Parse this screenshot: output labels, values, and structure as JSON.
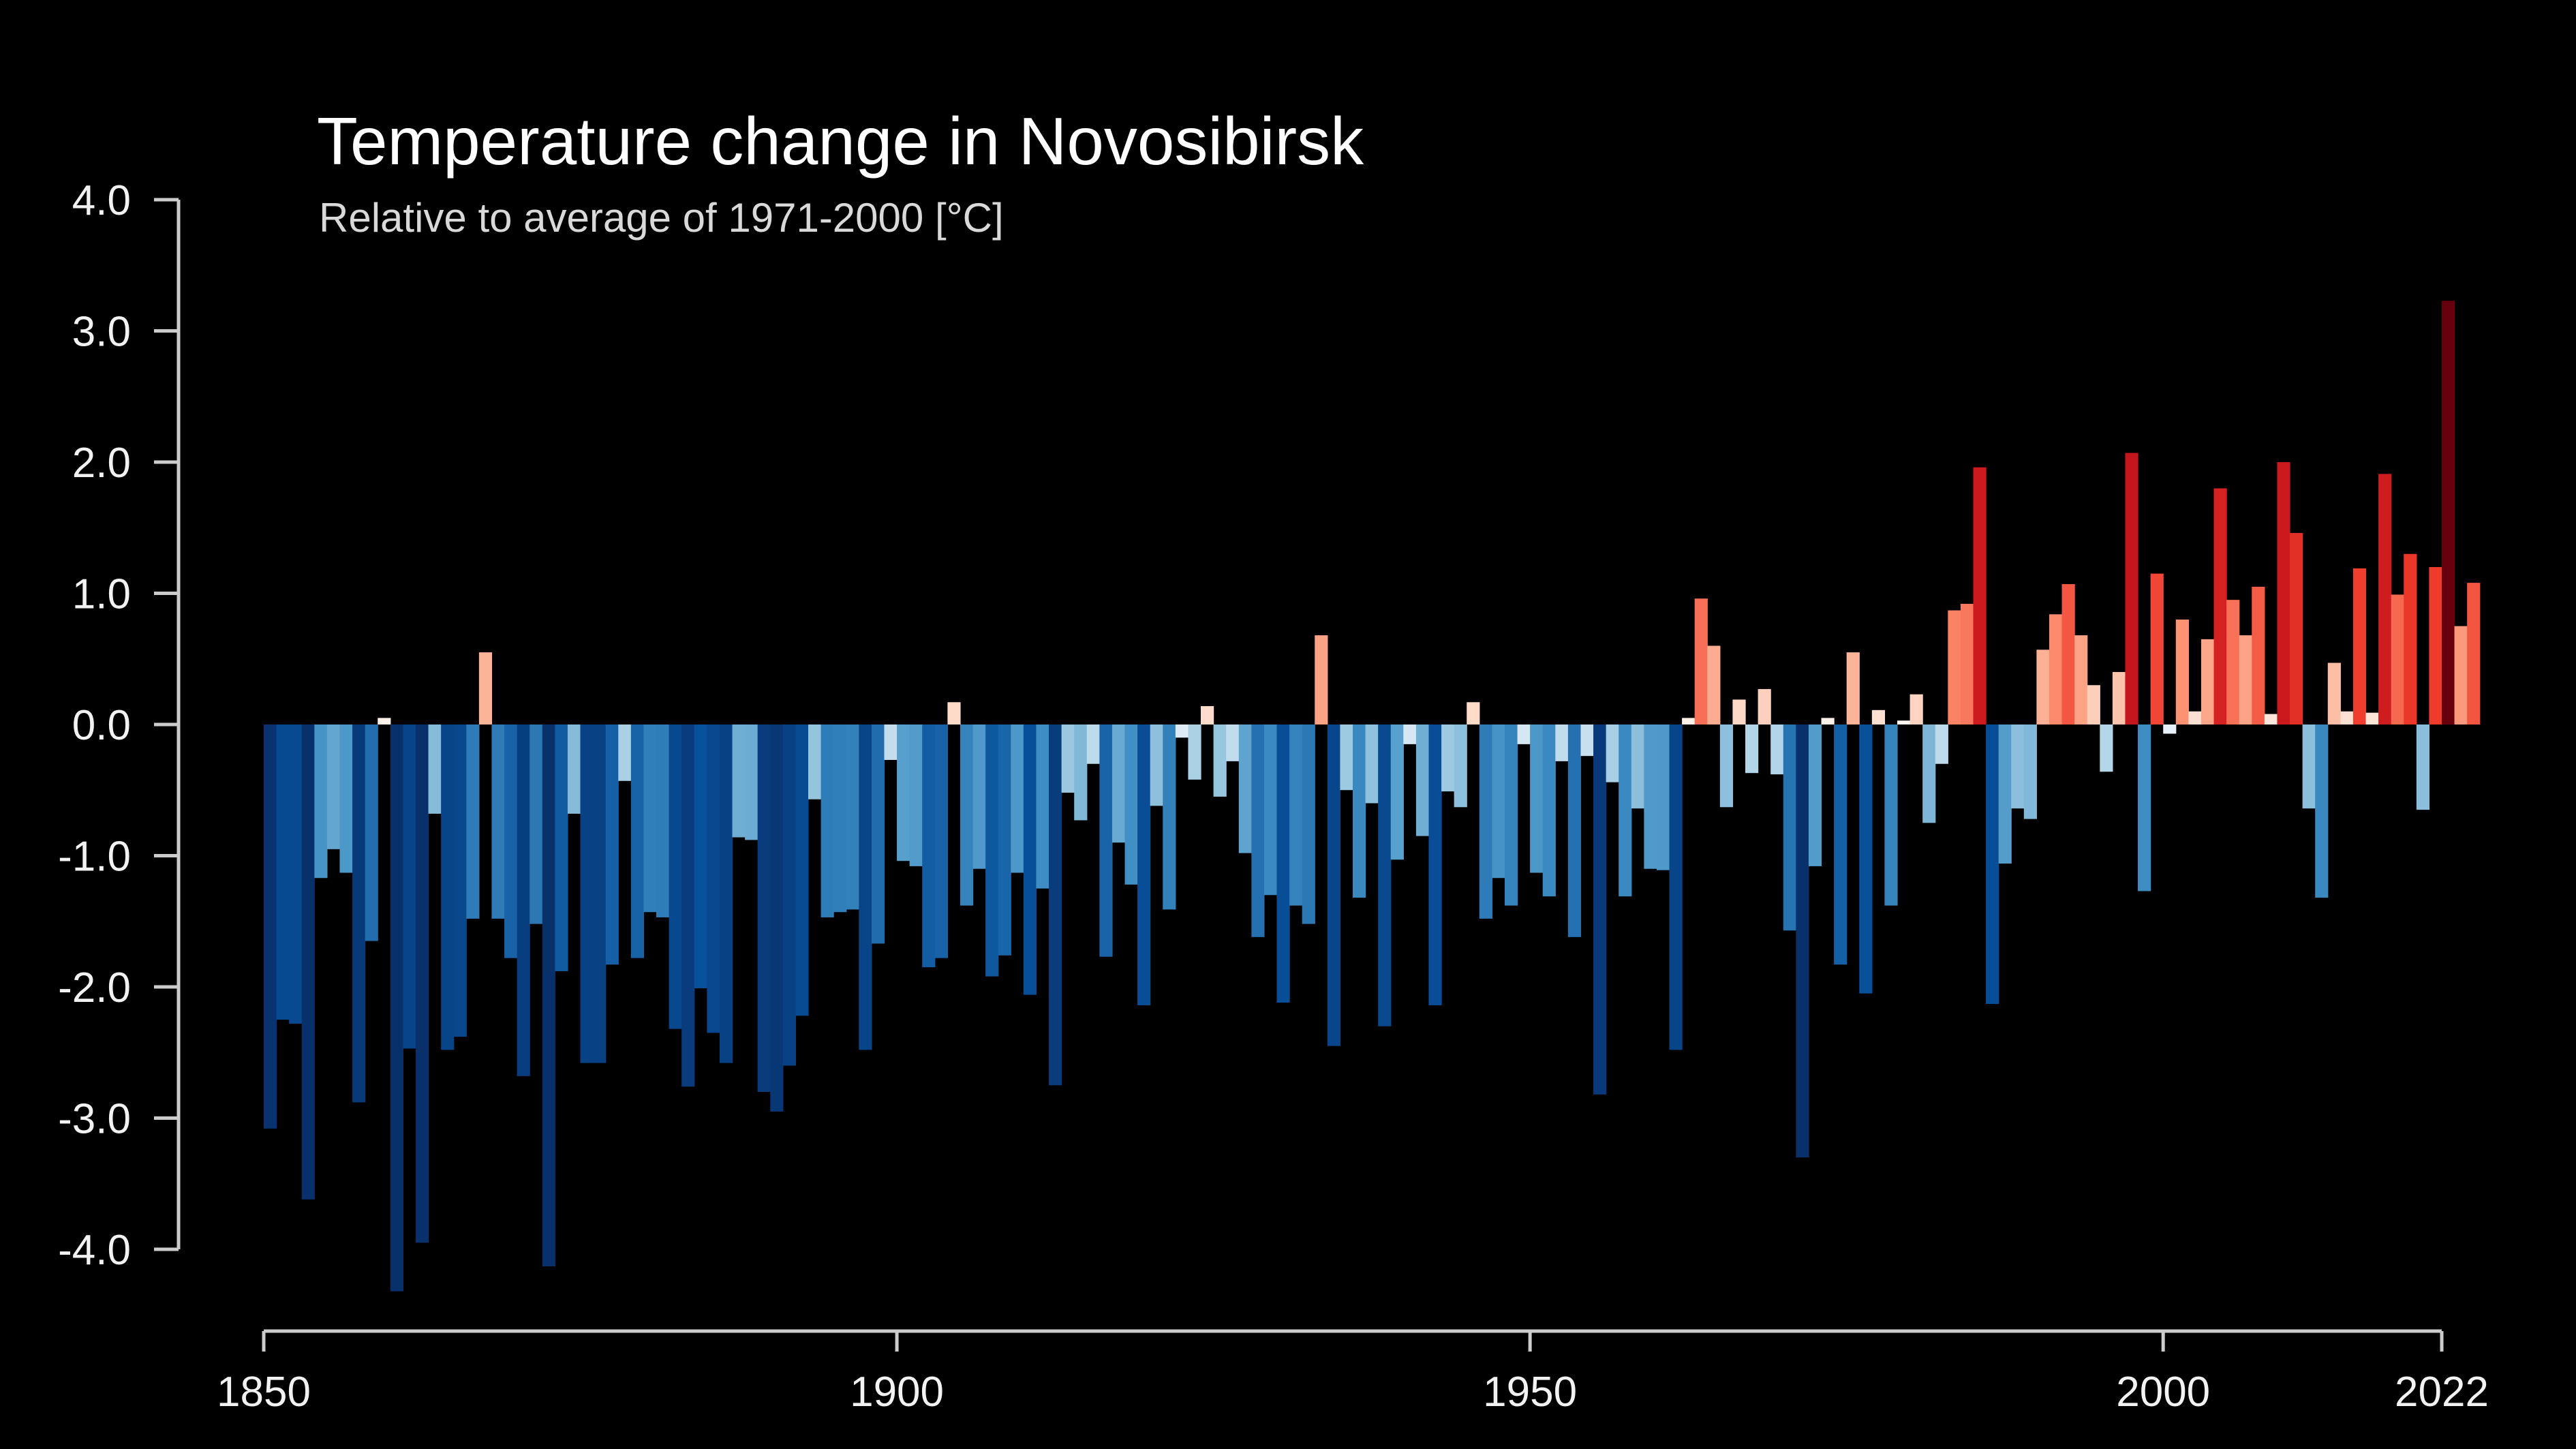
{
  "chart_data": {
    "type": "bar",
    "title": "Temperature change in Novosibirsk",
    "subtitle": "Relative to average of 1971-2000  [°C]",
    "xlabel": "",
    "ylabel": "",
    "ylim": [
      -4.0,
      4.0
    ],
    "xlim": [
      1850,
      2022
    ],
    "grid": false,
    "y_ticks": [
      "4.0",
      "3.0",
      "2.0",
      "1.0",
      "0.0",
      "-1.0",
      "-2.0",
      "-3.0",
      "-4.0"
    ],
    "x_ticks": [
      "1850",
      "1900",
      "1950",
      "2000",
      "2022"
    ],
    "x_start_year": 1850,
    "values": [
      -3.08,
      -2.25,
      -2.28,
      -3.62,
      -1.17,
      -0.95,
      -1.13,
      -2.88,
      -1.65,
      0.05,
      -4.32,
      -2.47,
      -3.95,
      -0.68,
      -2.48,
      -2.38,
      -1.48,
      0.55,
      -1.48,
      -1.78,
      -2.68,
      -1.52,
      -4.13,
      -1.88,
      -0.68,
      -2.58,
      -2.58,
      -1.83,
      -0.43,
      -1.78,
      -1.43,
      -1.47,
      -2.32,
      -2.76,
      -2.01,
      -2.35,
      -2.58,
      -0.86,
      -0.88,
      -2.8,
      -2.95,
      -2.6,
      -2.22,
      -0.57,
      -1.47,
      -1.43,
      -1.41,
      -2.48,
      -1.67,
      -0.27,
      -1.04,
      -1.08,
      -1.85,
      -1.78,
      0.17,
      -1.38,
      -1.1,
      -1.92,
      -1.76,
      -1.13,
      -2.06,
      -1.25,
      -2.75,
      -0.52,
      -0.73,
      -0.3,
      -1.77,
      -0.9,
      -1.22,
      -2.14,
      -0.62,
      -1.41,
      -0.1,
      -0.42,
      0.14,
      -0.55,
      -0.28,
      -0.98,
      -1.62,
      -1.3,
      -2.12,
      -1.38,
      -1.52,
      0.68,
      -2.45,
      -0.5,
      -1.32,
      -0.6,
      -2.3,
      -1.03,
      -0.15,
      -0.85,
      -2.14,
      -0.51,
      -0.63,
      0.17,
      -1.48,
      -1.17,
      -1.38,
      -0.15,
      -1.13,
      -1.31,
      -0.28,
      -1.62,
      -0.24,
      -2.82,
      -0.44,
      -1.31,
      -0.64,
      -1.1,
      -1.11,
      -2.48,
      0.05,
      0.96,
      0.6,
      -0.63,
      0.19,
      -0.37,
      0.27,
      -0.38,
      -1.57,
      -3.3,
      -1.08,
      0.05,
      -1.83,
      0.55,
      -2.05,
      0.11,
      -1.38,
      0.03,
      0.23,
      -0.75,
      -0.3,
      0.87,
      0.92,
      1.96,
      -2.13,
      -1.06,
      -0.64,
      -0.72,
      0.57,
      0.84,
      1.07,
      0.68,
      0.3,
      -0.36,
      0.4,
      2.07,
      -1.27,
      1.15,
      -0.07,
      0.8,
      0.1,
      0.65,
      1.8,
      0.95,
      0.68,
      1.05,
      0.08,
      2.0,
      1.46,
      -0.64,
      -1.32,
      0.47,
      0.1,
      1.19,
      0.09,
      1.91,
      0.99,
      1.3,
      -0.65,
      1.2,
      3.23,
      0.75,
      1.08
    ],
    "colors": {
      "background": "#000000",
      "cold_extreme": "#08306b",
      "cold": "#6baed6",
      "neutral": "#ffffff",
      "warm": "#fb6a4a",
      "warm_extreme": "#67000d",
      "axis": "#cccccc",
      "title": "#ffffff",
      "subtitle": "#d9d9d9"
    }
  }
}
